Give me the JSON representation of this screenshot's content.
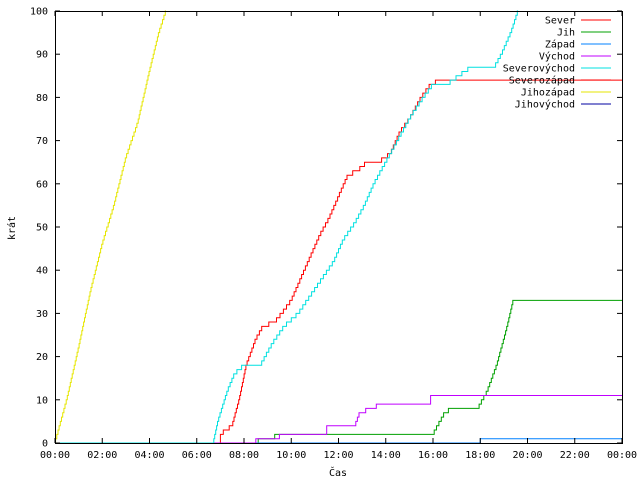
{
  "chart_data": {
    "type": "line",
    "title": "",
    "xlabel": "Čas",
    "ylabel": "krát",
    "xlim": [
      0,
      24
    ],
    "ylim": [
      0,
      100
    ],
    "x_ticks": [
      {
        "v": 0,
        "label": "00:00"
      },
      {
        "v": 2,
        "label": "02:00"
      },
      {
        "v": 4,
        "label": "04:00"
      },
      {
        "v": 6,
        "label": "06:00"
      },
      {
        "v": 8,
        "label": "08:00"
      },
      {
        "v": 10,
        "label": "10:00"
      },
      {
        "v": 12,
        "label": "12:00"
      },
      {
        "v": 14,
        "label": "14:00"
      },
      {
        "v": 16,
        "label": "16:00"
      },
      {
        "v": 18,
        "label": "18:00"
      },
      {
        "v": 20,
        "label": "20:00"
      },
      {
        "v": 22,
        "label": "22:00"
      },
      {
        "v": 24,
        "label": "00:00"
      }
    ],
    "y_ticks": [
      {
        "v": 0,
        "label": "0"
      },
      {
        "v": 10,
        "label": "10"
      },
      {
        "v": 20,
        "label": "20"
      },
      {
        "v": 30,
        "label": "30"
      },
      {
        "v": 40,
        "label": "40"
      },
      {
        "v": 50,
        "label": "50"
      },
      {
        "v": 60,
        "label": "60"
      },
      {
        "v": 70,
        "label": "70"
      },
      {
        "v": 80,
        "label": "80"
      },
      {
        "v": 90,
        "label": "90"
      },
      {
        "v": 100,
        "label": "100"
      }
    ],
    "grid": false,
    "legend_position": "top-right",
    "series": [
      {
        "name": "Sever",
        "color": "#ff0000",
        "points": [
          [
            0,
            0
          ],
          [
            7.0,
            0
          ],
          [
            7.0,
            2
          ],
          [
            7.5,
            4
          ],
          [
            7.8,
            10
          ],
          [
            8.1,
            18
          ],
          [
            8.5,
            24
          ],
          [
            8.8,
            27
          ],
          [
            9.3,
            28
          ],
          [
            9.6,
            30
          ],
          [
            10.0,
            33
          ],
          [
            10.4,
            38
          ],
          [
            10.8,
            43
          ],
          [
            11.2,
            48
          ],
          [
            11.6,
            52
          ],
          [
            12.0,
            57
          ],
          [
            12.4,
            62
          ],
          [
            12.8,
            63
          ],
          [
            13.2,
            65
          ],
          [
            13.7,
            65
          ],
          [
            14.2,
            67
          ],
          [
            14.6,
            72
          ],
          [
            15.0,
            75
          ],
          [
            15.5,
            80
          ],
          [
            15.9,
            83
          ],
          [
            16.3,
            84
          ],
          [
            17.0,
            84
          ],
          [
            24.0,
            84
          ]
        ]
      },
      {
        "name": "Jih",
        "color": "#00a000",
        "points": [
          [
            0,
            0
          ],
          [
            8.6,
            0
          ],
          [
            8.6,
            1
          ],
          [
            9.3,
            1
          ],
          [
            9.3,
            2
          ],
          [
            16.0,
            2
          ],
          [
            16.2,
            4
          ],
          [
            16.5,
            7
          ],
          [
            16.8,
            8
          ],
          [
            17.9,
            8
          ],
          [
            18.3,
            12
          ],
          [
            18.7,
            18
          ],
          [
            19.1,
            26
          ],
          [
            19.4,
            33
          ],
          [
            24.0,
            33
          ]
        ]
      },
      {
        "name": "Západ",
        "color": "#0080ff",
        "points": [
          [
            0,
            0
          ],
          [
            18.0,
            0
          ],
          [
            18.0,
            1
          ],
          [
            24.0,
            1
          ]
        ]
      },
      {
        "name": "Východ",
        "color": "#c000ff",
        "points": [
          [
            0,
            0
          ],
          [
            8.5,
            0
          ],
          [
            8.5,
            1
          ],
          [
            9.5,
            1
          ],
          [
            9.5,
            2
          ],
          [
            11.5,
            2
          ],
          [
            11.5,
            4
          ],
          [
            12.7,
            4
          ],
          [
            12.9,
            7
          ],
          [
            13.4,
            8
          ],
          [
            13.8,
            9
          ],
          [
            15.9,
            9
          ],
          [
            15.9,
            11
          ],
          [
            24.0,
            11
          ]
        ]
      },
      {
        "name": "Severovýchod",
        "color": "#00e0e0",
        "points": [
          [
            0,
            0
          ],
          [
            6.7,
            0
          ],
          [
            6.9,
            5
          ],
          [
            7.3,
            12
          ],
          [
            7.6,
            16
          ],
          [
            8.0,
            18
          ],
          [
            8.7,
            18
          ],
          [
            9.2,
            23
          ],
          [
            9.7,
            27
          ],
          [
            10.3,
            30
          ],
          [
            10.8,
            34
          ],
          [
            11.3,
            38
          ],
          [
            11.8,
            42
          ],
          [
            12.2,
            47
          ],
          [
            12.7,
            51
          ],
          [
            13.1,
            55
          ],
          [
            13.5,
            60
          ],
          [
            13.9,
            64
          ],
          [
            14.3,
            68
          ],
          [
            14.7,
            72
          ],
          [
            15.1,
            76
          ],
          [
            15.6,
            80
          ],
          [
            16.0,
            83
          ],
          [
            16.6,
            83
          ],
          [
            17.1,
            85
          ],
          [
            17.6,
            87
          ],
          [
            18.6,
            87
          ],
          [
            18.9,
            90
          ],
          [
            19.3,
            95
          ],
          [
            19.6,
            100
          ]
        ]
      },
      {
        "name": "Severozápad",
        "color": "#ff0000",
        "points": []
      },
      {
        "name": "Jihozápad",
        "color": "#e6e600",
        "points": [
          [
            0,
            0
          ],
          [
            0.5,
            10
          ],
          [
            1.0,
            22
          ],
          [
            1.5,
            35
          ],
          [
            2.0,
            46
          ],
          [
            2.5,
            55
          ],
          [
            3.0,
            66
          ],
          [
            3.5,
            74
          ],
          [
            4.0,
            86
          ],
          [
            4.4,
            95
          ],
          [
            4.7,
            100
          ]
        ]
      },
      {
        "name": "Jihovýchod",
        "color": "#0000a0",
        "points": []
      }
    ]
  }
}
